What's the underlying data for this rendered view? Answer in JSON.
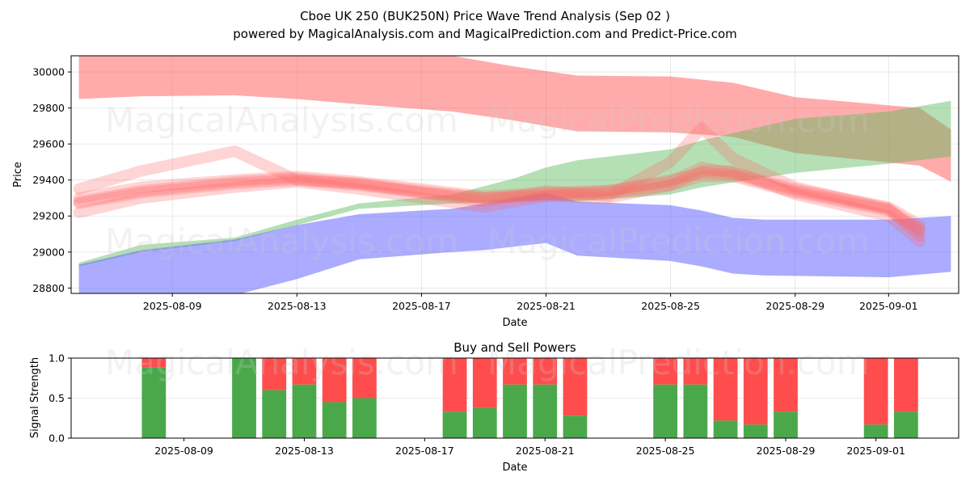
{
  "title": {
    "line1": "Cboe UK 250 (BUK250N) Price Wave Trend Analysis (Sep 02 )",
    "line2": "powered by MagicalAnalysis.com and MagicalPrediction.com and Predict-Price.com"
  },
  "watermarks": [
    "MagicalAnalysis.com",
    "MagicalPrediction.com"
  ],
  "colors": {
    "red_band": "#ff6666",
    "green_band": "#5cb85c",
    "blue_band": "#6666ff",
    "buy": "#4aa84a",
    "sell": "#ff4d4d"
  },
  "chart_data": [
    {
      "type": "area",
      "title": "",
      "xlabel": "Date",
      "ylabel": "Price",
      "xlim": [
        "2025-08-05T18:00",
        "2025-09-03T06:00"
      ],
      "ylim": [
        28770,
        30090
      ],
      "y_ticks": [
        28800,
        29000,
        29200,
        29400,
        29600,
        29800,
        30000
      ],
      "x_ticks": [
        "2025-08-09",
        "2025-08-13",
        "2025-08-17",
        "2025-08-21",
        "2025-08-25",
        "2025-08-29",
        "2025-09-01"
      ],
      "grid": true,
      "series": [
        {
          "color": "#ff6666",
          "opacity": 0.55,
          "x": [
            "2025-08-06",
            "2025-08-08",
            "2025-08-11",
            "2025-08-13",
            "2025-08-15",
            "2025-08-18",
            "2025-08-20",
            "2025-08-22",
            "2025-08-25",
            "2025-08-27",
            "2025-08-29",
            "2025-09-02",
            "2025-09-03"
          ],
          "upper": [
            30100,
            30100,
            30100,
            30100,
            30100,
            30090,
            30030,
            29980,
            29975,
            29940,
            29860,
            29800,
            29680
          ],
          "lower": [
            29850,
            29865,
            29870,
            29850,
            29820,
            29780,
            29730,
            29670,
            29665,
            29640,
            29550,
            29480,
            29390
          ]
        },
        {
          "color": "#5cb85c",
          "opacity": 0.45,
          "x": [
            "2025-08-06",
            "2025-08-08",
            "2025-08-11",
            "2025-08-13",
            "2025-08-15",
            "2025-08-18",
            "2025-08-20",
            "2025-08-21",
            "2025-08-22",
            "2025-08-25",
            "2025-08-26",
            "2025-08-29",
            "2025-09-01",
            "2025-09-03"
          ],
          "upper": [
            28940,
            29040,
            29080,
            29180,
            29270,
            29320,
            29410,
            29470,
            29510,
            29570,
            29620,
            29740,
            29780,
            29840
          ],
          "lower": [
            28920,
            29000,
            29060,
            29150,
            29240,
            29270,
            29280,
            29290,
            29280,
            29320,
            29360,
            29440,
            29490,
            29530
          ]
        },
        {
          "color": "#6666ff",
          "opacity": 0.55,
          "x": [
            "2025-08-06",
            "2025-08-08",
            "2025-08-11",
            "2025-08-13",
            "2025-08-15",
            "2025-08-18",
            "2025-08-19",
            "2025-08-21",
            "2025-08-22",
            "2025-08-25",
            "2025-08-26",
            "2025-08-27",
            "2025-08-28",
            "2025-09-01",
            "2025-09-03"
          ],
          "upper": [
            28930,
            29010,
            29070,
            29150,
            29210,
            29240,
            29270,
            29330,
            29280,
            29260,
            29230,
            29190,
            29180,
            29180,
            29200
          ],
          "lower": [
            28760,
            28760,
            28760,
            28850,
            28960,
            29000,
            29010,
            29050,
            28980,
            28950,
            28920,
            28880,
            28870,
            28860,
            28890
          ]
        }
      ],
      "wave_lines": {
        "color": "#ff6666",
        "x": [
          "2025-08-06",
          "2025-08-08",
          "2025-08-11",
          "2025-08-13",
          "2025-08-15",
          "2025-08-17",
          "2025-08-19",
          "2025-08-21",
          "2025-08-23",
          "2025-08-25",
          "2025-08-26",
          "2025-08-27",
          "2025-08-29",
          "2025-09-01",
          "2025-09-02"
        ],
        "lines": [
          [
            29270,
            29330,
            29380,
            29400,
            29370,
            29330,
            29300,
            29310,
            29330,
            29370,
            29420,
            29420,
            29330,
            29230,
            29120
          ],
          [
            29300,
            29360,
            29400,
            29420,
            29390,
            29350,
            29310,
            29330,
            29340,
            29390,
            29470,
            29440,
            29350,
            29250,
            29150
          ],
          [
            29350,
            29450,
            29560,
            29400,
            29380,
            29330,
            29280,
            29340,
            29310,
            29500,
            29690,
            29520,
            29360,
            29240,
            29090
          ],
          [
            29220,
            29300,
            29360,
            29390,
            29350,
            29300,
            29250,
            29310,
            29300,
            29370,
            29450,
            29450,
            29320,
            29200,
            29060
          ],
          [
            29280,
            29340,
            29390,
            29410,
            29380,
            29340,
            29300,
            29320,
            29340,
            29400,
            29440,
            29430,
            29340,
            29240,
            29130
          ]
        ]
      }
    },
    {
      "type": "bar",
      "title": "Buy and Sell Powers",
      "xlabel": "Date",
      "ylabel": "Signal Strength",
      "ylim": [
        0,
        1.0
      ],
      "y_ticks": [
        0.0,
        0.5,
        1.0
      ],
      "x_ticks": [
        "2025-08-09",
        "2025-08-13",
        "2025-08-17",
        "2025-08-21",
        "2025-08-25",
        "2025-08-29",
        "2025-09-01"
      ],
      "categories": [
        "2025-08-08",
        "2025-08-11",
        "2025-08-12",
        "2025-08-13",
        "2025-08-14",
        "2025-08-15",
        "2025-08-18",
        "2025-08-19",
        "2025-08-20",
        "2025-08-21",
        "2025-08-22",
        "2025-08-25",
        "2025-08-26",
        "2025-08-27",
        "2025-08-28",
        "2025-08-29",
        "2025-09-01",
        "2025-09-02"
      ],
      "series": [
        {
          "name": "Buy",
          "values": [
            0.88,
            1.0,
            0.6,
            0.67,
            0.45,
            0.5,
            0.33,
            0.38,
            0.67,
            0.67,
            0.28,
            0.67,
            0.67,
            0.22,
            0.17,
            0.33,
            0.17,
            0.33
          ]
        },
        {
          "name": "Sell",
          "values": [
            0.12,
            0.0,
            0.4,
            0.33,
            0.55,
            0.5,
            0.67,
            0.62,
            0.33,
            0.33,
            0.72,
            0.33,
            0.33,
            0.78,
            0.83,
            0.67,
            0.83,
            0.67
          ]
        }
      ]
    }
  ]
}
